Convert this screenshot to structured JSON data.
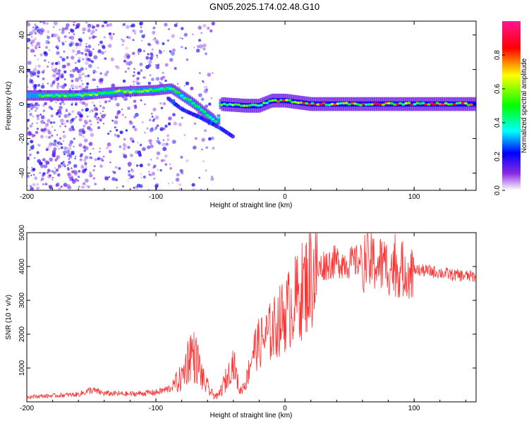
{
  "chart_data": [
    {
      "type": "heatmap",
      "title": "GN05.2025.174.02.48.G10",
      "xlabel": "Height of straight line (km)",
      "ylabel": "Frequency (Hz)",
      "xlim": [
        -200,
        148
      ],
      "ylim": [
        -50,
        48
      ],
      "xticks": [
        -200,
        -100,
        0,
        100
      ],
      "yticks": [
        -40,
        -20,
        0,
        20,
        40
      ],
      "grid": false,
      "colorbar": {
        "label": "Normalized spectral amplitude",
        "range": [
          0,
          1
        ],
        "ticks": [
          "0.0",
          "0.2",
          "0.4",
          "0.6",
          "0.8"
        ],
        "colormap": [
          "#ffffff",
          "#8a2be2",
          "#0000ff",
          "#00ffff",
          "#00ff00",
          "#ffff00",
          "#ff0000",
          "#ff1493"
        ]
      },
      "ridge_centerline": [
        {
          "x": -200,
          "y": 5
        },
        {
          "x": -160,
          "y": 5
        },
        {
          "x": -130,
          "y": 7
        },
        {
          "x": -100,
          "y": 8
        },
        {
          "x": -88,
          "y": 9
        },
        {
          "x": -80,
          "y": 5
        },
        {
          "x": -70,
          "y": 0
        },
        {
          "x": -62,
          "y": -5
        },
        {
          "x": -55,
          "y": -9
        },
        {
          "x": -52,
          "y": -12
        },
        {
          "x": -50,
          "y": 0
        },
        {
          "x": -30,
          "y": -1
        },
        {
          "x": -20,
          "y": -1
        },
        {
          "x": -10,
          "y": 2
        },
        {
          "x": 0,
          "y": 2
        },
        {
          "x": 20,
          "y": 0
        },
        {
          "x": 148,
          "y": 0
        }
      ],
      "weak_branch": [
        {
          "x": -90,
          "y": 3
        },
        {
          "x": -80,
          "y": -3
        },
        {
          "x": -65,
          "y": -8
        },
        {
          "x": -50,
          "y": -14
        },
        {
          "x": -40,
          "y": -19
        }
      ]
    },
    {
      "type": "line",
      "xlabel": "Height of straight line (km)",
      "ylabel": "SNR (10 * v/v)",
      "xlim": [
        -200,
        148
      ],
      "ylim": [
        0,
        5000
      ],
      "xticks": [
        -200,
        -100,
        0,
        100
      ],
      "yticks": [
        1000,
        2000,
        3000,
        4000,
        5000
      ],
      "grid": false,
      "series_color": "#ff3030",
      "envelope": [
        {
          "x": -200,
          "y": 150
        },
        {
          "x": -180,
          "y": 180
        },
        {
          "x": -160,
          "y": 220
        },
        {
          "x": -150,
          "y": 350
        },
        {
          "x": -140,
          "y": 250
        },
        {
          "x": -120,
          "y": 230
        },
        {
          "x": -100,
          "y": 280
        },
        {
          "x": -90,
          "y": 380
        },
        {
          "x": -80,
          "y": 700
        },
        {
          "x": -73,
          "y": 1500
        },
        {
          "x": -68,
          "y": 1200
        },
        {
          "x": -63,
          "y": 600
        },
        {
          "x": -57,
          "y": 250
        },
        {
          "x": -52,
          "y": 150
        },
        {
          "x": -45,
          "y": 700
        },
        {
          "x": -40,
          "y": 1200
        },
        {
          "x": -35,
          "y": 300
        },
        {
          "x": -30,
          "y": 600
        },
        {
          "x": -25,
          "y": 1500
        },
        {
          "x": -18,
          "y": 1800
        },
        {
          "x": -10,
          "y": 2100
        },
        {
          "x": 0,
          "y": 2600
        },
        {
          "x": 10,
          "y": 3100
        },
        {
          "x": 20,
          "y": 3700
        },
        {
          "x": 30,
          "y": 4050
        },
        {
          "x": 40,
          "y": 4150
        },
        {
          "x": 50,
          "y": 4100
        },
        {
          "x": 60,
          "y": 4200
        },
        {
          "x": 70,
          "y": 4100
        },
        {
          "x": 80,
          "y": 4000
        },
        {
          "x": 90,
          "y": 3900
        },
        {
          "x": 100,
          "y": 3900
        },
        {
          "x": 115,
          "y": 3850
        },
        {
          "x": 130,
          "y": 3750
        },
        {
          "x": 148,
          "y": 3700
        }
      ]
    }
  ]
}
